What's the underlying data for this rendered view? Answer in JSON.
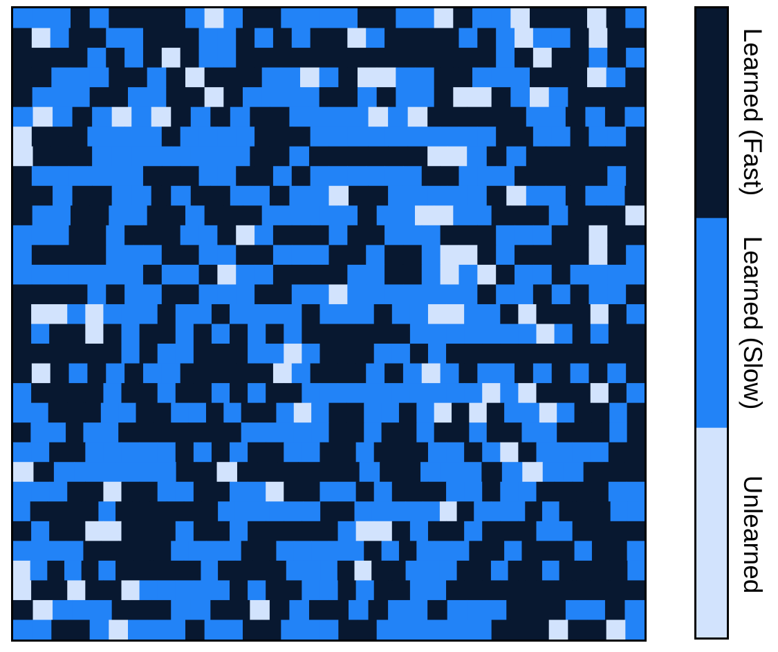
{
  "chart_data": {
    "type": "heatmap",
    "title": "",
    "xlabel": "",
    "ylabel": "",
    "grid": false,
    "legend": "right colorbar",
    "categories": [
      "Learned (Fast)",
      "Learned (Slow)",
      "Unlearned"
    ],
    "colors": {
      "Learned (Fast)": "#081830",
      "Learned (Slow)": "#2283f7",
      "Unlearned": "#d2e3fd"
    },
    "rows": [
      "SSSFSFFFFSUSFFSSSSFFSSUFSSUFFFUFS",
      "FUSFFSSFFFSSFSFSFFUSFFFFSFSUSSFUFF",
      "FFFFSFSFUFSSFFFFFFFFFFFFFFSFUFFSFS",
      "FFSSSFFSFUFFFSSUSFUUSSFFSSSFFFUSF",
      "FSSSFFSSFFUFSSSSFFSFSSFUUFSUSFFFF",
      "SUSFSUSUFSFSFFSSSSUSUFFFFFSSFSFS",
      "UFFFSSSSFSSSSFFFSSSSSSSSSSFFSSFSSF",
      "UFFFSSSSSSSSFFSFFFFFFUUSFSFFFFFF",
      "FSSSSSSFFFSSFFSFSSSSSSFFSSSFFFFFSF",
      "FFSFFSSFSFFSSFSSUFFSSSSSFUSSFSSF",
      "FSSFFSSFFSFFFSSSSSFSSUUSSFFFSFFFU",
      "SSSFFSFFFSSFUSFFFSFFSSSFFFSSSFFUFF",
      "SFFFFSSSFFSSFFSSSFFSFFSUUFSFFFFUFS",
      "SSSSSSSFSSFUSSFFFFSSFFSUSUFSSFSSSS",
      "FFFFSFSSFFSSSFFSSUSSSSSSSFSSFSFSSF",
      "FUUSUSSSFSSFSSSSFSSSFSSUUSSFUFFFUFS",
      "FSFFUFSFFSFSFSFSFFFFFFSSSSSSSUSFSFF",
      "FFFFFFSFSSFFFSSUSFFFSSFSFFFFFFFFFFF",
      "FUFSFSFSSFFFFFUSFFFSFSUSFSSFSFSFSF",
      "SFFFFSFFSFFSFSFFSSSSSSSSSSUSUFFFUFS",
      "SSFFFSSFFSSFSFFSUSFFSSFSUFUFSSUSFFSF",
      "FSSFSSFFFFFFFSSSSSFFSFFSFFSFFSSFFFSF",
      "SSFFSSSSSFSFSFFSSFFSFFFSSFSUFSSSSFF",
      "UFSSSSSSFFUFFFFFFSFFSSSFSUSSFFF",
      "SSSFFUFFSSFFSSUFFSSFSFFFSSFSSFFFFSS",
      "SFFFFSFFFFFFSSSSSSFFSSSSSUFSSSFSFFFSS",
      "FSFFUUFFFSFFSFFFFFSUUFSFFSFFFSSFFFF",
      "SSSSFFFFFSSSSFFSSSSSFSFSSSFFSFFFSFFS",
      "USFSFSFFFFFSFFFFSSSFUFFSSSFFSFFSFFFFS",
      "UFFUFFUSSSSSFSFFSSFSFFSSFFFFFFFFFFF",
      "FUSSSFFFSSFFUFSFFSFSSFSSSFFFSSFS",
      "SSFFSUSSSFSSFFSSSFFSSSSSSFFFUFFUS"
    ]
  }
}
